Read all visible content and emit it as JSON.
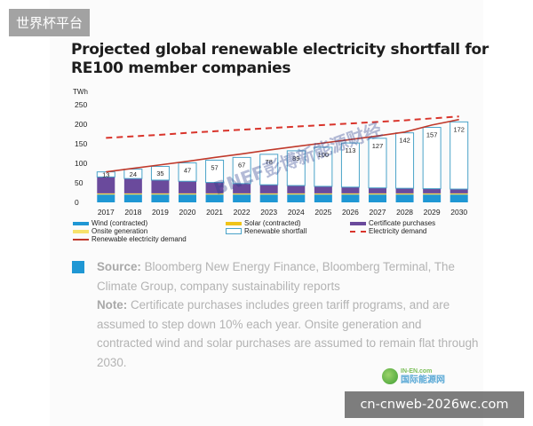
{
  "overlay": {
    "badge": "世界杯平台",
    "url": "cn-cnweb-2026wc.com",
    "watermark": "BNEF彭博新能源财经",
    "logo_line1": "IN-EN.com",
    "logo_line2": "国际能源网"
  },
  "chart_data": {
    "type": "bar",
    "title": "Projected global renewable electricity shortfall for RE100 member companies",
    "ylabel": "TWh",
    "ylim": [
      0,
      250
    ],
    "yticks": [
      "0",
      "50",
      "100",
      "150",
      "200",
      "250"
    ],
    "categories": [
      "2017",
      "2018",
      "2019",
      "2020",
      "2021",
      "2022",
      "2023",
      "2024",
      "2025",
      "2026",
      "2027",
      "2028",
      "2029",
      "2030"
    ],
    "series": [
      {
        "name": "Wind (contracted)",
        "color": "#1f97d4",
        "values": [
          20,
          20,
          20,
          20,
          20,
          20,
          20,
          20,
          20,
          20,
          20,
          20,
          20,
          20
        ]
      },
      {
        "name": "Solar (contracted)",
        "color": "#f0c419",
        "values": [
          2,
          2,
          2,
          2,
          2,
          2,
          2,
          2,
          2,
          2,
          2,
          2,
          2,
          2
        ]
      },
      {
        "name": "Onsite generation",
        "color": "#f7e26b",
        "values": [
          1,
          1,
          1,
          1,
          1,
          1,
          1,
          1,
          1,
          1,
          1,
          1,
          1,
          1
        ]
      },
      {
        "name": "Certificate purchases",
        "color": "#6a4a9c",
        "values": [
          42,
          38,
          34,
          31,
          28,
          25,
          22,
          20,
          18,
          16,
          14,
          13,
          12,
          11
        ]
      },
      {
        "name": "Renewable shortfall",
        "color": "#ffffff",
        "values": [
          13,
          24,
          35,
          47,
          57,
          67,
          78,
          89,
          100,
          113,
          127,
          142,
          157,
          172
        ]
      }
    ],
    "lines": [
      {
        "name": "Electricity demand",
        "style": "dashed",
        "color": "#d9342b",
        "values": [
          165,
          169,
          173,
          178,
          182,
          186,
          190,
          194,
          198,
          202,
          206,
          210,
          215,
          220
        ]
      },
      {
        "name": "Renewable electricity demand",
        "style": "solid",
        "color": "#c0392b",
        "values": [
          78,
          87,
          96,
          105,
          115,
          124,
          134,
          143,
          152,
          161,
          170,
          180,
          198,
          212
        ]
      }
    ],
    "data_labels": [
      "13",
      "24",
      "35",
      "47",
      "57",
      "67",
      "78",
      "89",
      "100",
      "113",
      "127",
      "142",
      "157",
      "172"
    ],
    "legend": [
      {
        "label": "Wind (contracted)",
        "kind": "bar",
        "color": "#1f97d4"
      },
      {
        "label": "Solar (contracted)",
        "kind": "bar",
        "color": "#f0c419"
      },
      {
        "label": "Certificate purchases",
        "kind": "bar",
        "color": "#6a4a9c"
      },
      {
        "label": "Onsite generation",
        "kind": "bar",
        "color": "#f7e26b"
      },
      {
        "label": "Renewable shortfall",
        "kind": "box",
        "color": "#4aa3c9"
      },
      {
        "label": "Electricity demand",
        "kind": "dash",
        "color": "#d9342b"
      },
      {
        "label": "Renewable electricity demand",
        "kind": "line",
        "color": "#c0392b"
      }
    ],
    "legend_position": "bottom",
    "grid": false
  },
  "notes": {
    "source_label": "Source:",
    "source_text": " Bloomberg New Energy Finance, Bloomberg Terminal, The Climate Group, company sustainability reports",
    "note_label": "Note:",
    "note_text": " Certificate purchases includes green tariff programs, and are assumed to step down 10% each year. Onsite generation and contracted wind and solar purchases are assumed to remain flat through 2030."
  }
}
